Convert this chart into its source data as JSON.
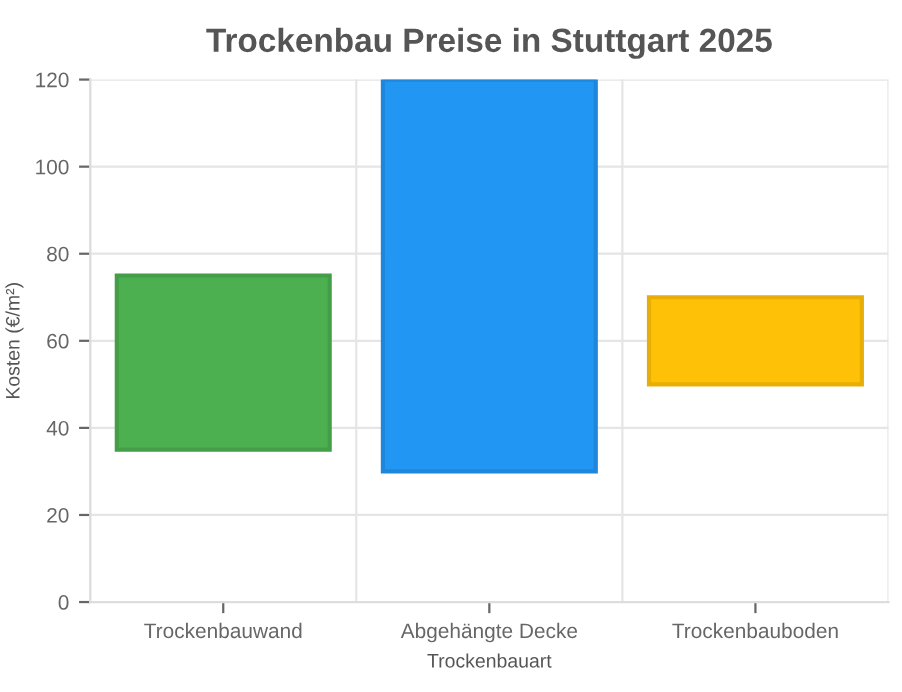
{
  "chart_data": {
    "type": "bar",
    "title": "Trockenbau Preise in Stuttgart 2025",
    "xlabel": "Trockenbauart",
    "ylabel": "Kosten (€/m²)",
    "categories": [
      "Trockenbauwand",
      "Abgehängte Decke",
      "Trockenbauboden"
    ],
    "base": [
      35,
      30,
      50
    ],
    "values": [
      40,
      90,
      20
    ],
    "colors": [
      "#4caf50",
      "#2196f3",
      "#ffc107"
    ],
    "ylim": [
      0,
      120
    ],
    "yticks": [
      0,
      20,
      40,
      60,
      80,
      100,
      120
    ],
    "grid": true
  }
}
